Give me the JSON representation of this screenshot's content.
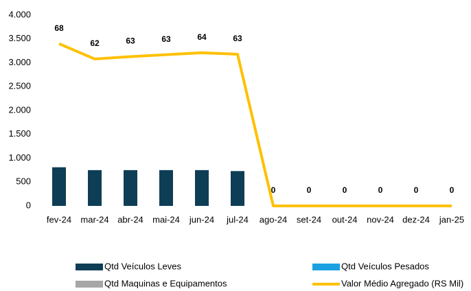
{
  "chart_data": {
    "type": "bar_line",
    "categories": [
      "fev-24",
      "mar-24",
      "abr-24",
      "mai-24",
      "jun-24",
      "jul-24",
      "ago-24",
      "set-24",
      "out-24",
      "nov-24",
      "dez-24",
      "jan-25"
    ],
    "series": [
      {
        "name": "Qtd Veículos Leves",
        "color": "#0e3e55",
        "kind": "bar",
        "values": [
          810,
          750,
          750,
          750,
          750,
          730,
          0,
          0,
          0,
          0,
          0,
          0
        ]
      },
      {
        "name": "Qtd Veículos Pesados",
        "color": "#1ba1e2",
        "kind": "bar",
        "values": [
          0,
          0,
          0,
          0,
          0,
          0,
          0,
          0,
          0,
          0,
          0,
          0
        ]
      },
      {
        "name": "Qtd Maquinas e Equipamentos",
        "color": "#a6a6a6",
        "kind": "bar",
        "values": [
          0,
          0,
          0,
          0,
          0,
          0,
          0,
          0,
          0,
          0,
          0,
          0
        ]
      },
      {
        "name": "Valor Médio Agregado (RS Mil)",
        "color": "#ffc000",
        "kind": "line",
        "values": [
          3400,
          3080,
          3130,
          3170,
          3210,
          3180,
          0,
          0,
          0,
          0,
          0,
          0
        ]
      }
    ],
    "data_labels": [
      "68",
      "62",
      "63",
      "63",
      "64",
      "63",
      "0",
      "0",
      "0",
      "0",
      "0",
      "0"
    ],
    "ylim": [
      0,
      4000
    ],
    "yticks": [
      0,
      500,
      {
        "value": 1000,
        "label": "1.000"
      },
      {
        "value": 1500,
        "label": "1.500"
      },
      {
        "value": 2000,
        "label": "2.000"
      },
      {
        "value": 2500,
        "label": "2.500"
      },
      {
        "value": 3000,
        "label": "3.000"
      },
      {
        "value": 3500,
        "label": "3.500"
      },
      {
        "value": 4000,
        "label": "4.000"
      }
    ],
    "grid": false
  }
}
